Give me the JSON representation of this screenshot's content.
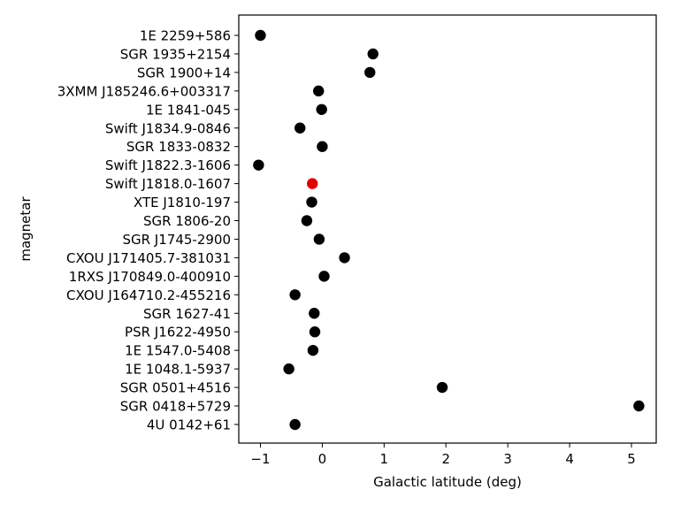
{
  "chart_data": {
    "type": "scatter",
    "title": "",
    "xlabel": "Galactic latitude (deg)",
    "ylabel": "magnetar",
    "xlim": [
      -1.35,
      5.4
    ],
    "x_ticks": [
      -1,
      0,
      1,
      2,
      3,
      4,
      5
    ],
    "grid": false,
    "legend": "none",
    "default_color": "#000000",
    "highlight_color": "#e00000",
    "points": [
      {
        "label": "1E 2259+586",
        "x": -1.0
      },
      {
        "label": "SGR 1935+2154",
        "x": 0.82
      },
      {
        "label": "SGR 1900+14",
        "x": 0.77
      },
      {
        "label": "3XMM J185246.6+003317",
        "x": -0.06
      },
      {
        "label": "1E 1841-045",
        "x": -0.01
      },
      {
        "label": "Swift J1834.9-0846",
        "x": -0.36
      },
      {
        "label": "SGR 1833-0832",
        "x": 0.0
      },
      {
        "label": "Swift J1822.3-1606",
        "x": -1.03
      },
      {
        "label": "Swift J1818.0-1607",
        "x": -0.16,
        "highlight": true
      },
      {
        "label": "XTE J1810-197",
        "x": -0.17
      },
      {
        "label": "SGR 1806-20",
        "x": -0.25
      },
      {
        "label": "SGR J1745-2900",
        "x": -0.05
      },
      {
        "label": "CXOU J171405.7-381031",
        "x": 0.36
      },
      {
        "label": "1RXS J170849.0-400910",
        "x": 0.03
      },
      {
        "label": "CXOU J164710.2-455216",
        "x": -0.44
      },
      {
        "label": "SGR 1627-41",
        "x": -0.13
      },
      {
        "label": "PSR J1622-4950",
        "x": -0.12
      },
      {
        "label": "1E 1547.0-5408",
        "x": -0.15
      },
      {
        "label": "1E 1048.1-5937",
        "x": -0.54
      },
      {
        "label": "SGR 0501+4516",
        "x": 1.94
      },
      {
        "label": "SGR 0418+5729",
        "x": 5.12
      },
      {
        "label": "4U 0142+61",
        "x": -0.44
      }
    ]
  }
}
